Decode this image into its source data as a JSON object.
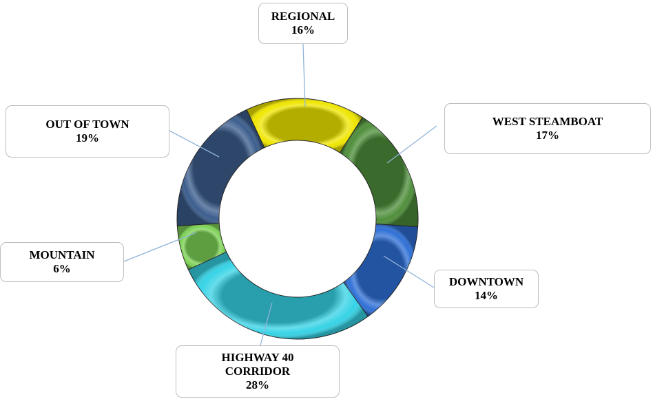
{
  "chart_data": {
    "type": "donut",
    "categories": [
      "REGIONAL",
      "WEST STEAMBOAT",
      "DOWNTOWN",
      "HIGHWAY 40 CORRIDOR",
      "MOUNTAIN",
      "OUT OF TOWN"
    ],
    "values": [
      16,
      17,
      14,
      28,
      6,
      19
    ],
    "value_labels": [
      "16%",
      "17%",
      "14%",
      "28%",
      "6%",
      "19%"
    ],
    "colors": [
      "#efe600",
      "#4f8f3b",
      "#2f70d6",
      "#36d3e6",
      "#7dd255",
      "#3c5e8e"
    ]
  }
}
